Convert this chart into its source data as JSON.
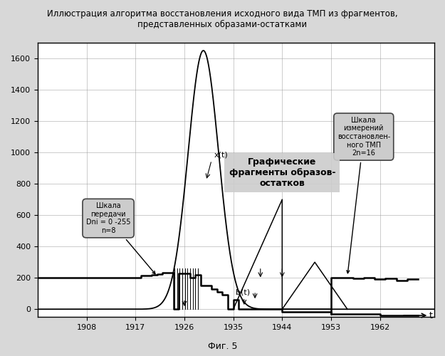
{
  "title_line1": "Иллюстрация алгоритма восстановления исходного вида ТМП из фрагментов,",
  "title_line2": "представленных образами-остатками",
  "xlabel": "t",
  "ylim": [
    -50,
    1700
  ],
  "xlim": [
    1899,
    1972
  ],
  "xticks": [
    1908,
    1917,
    1926,
    1935,
    1944,
    1953,
    1962
  ],
  "yticks": [
    0,
    200,
    400,
    600,
    800,
    1000,
    1200,
    1400,
    1600
  ],
  "plot_bg": "#ffffff",
  "grid_color": "#999999",
  "callout_left_text": "Шкала\nпередачи\nDni = 0 -255\nn=8",
  "callout_right_text": "Шкала\nизмерений\nвосстановлен-\nного ТМП\n2n=16",
  "annotation_center_text": "Графические\nфрагменты образов-\nостатков",
  "label_xt": "x(t)",
  "label_bt": "b(t)",
  "fig5_text": "Фиг. 5"
}
